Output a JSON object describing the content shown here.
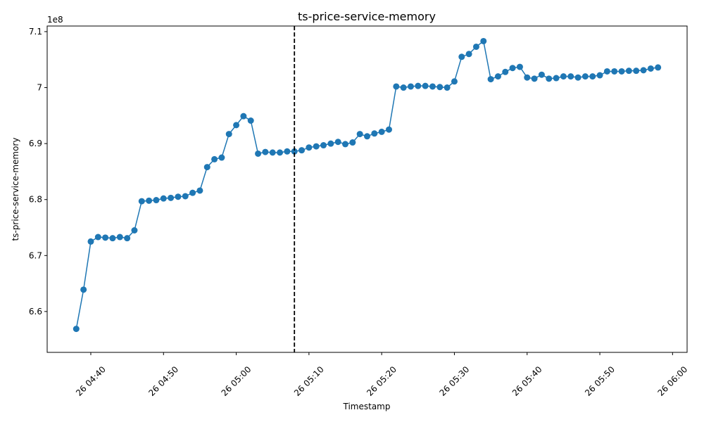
{
  "chart_data": {
    "type": "line",
    "title": "ts-price-service-memory",
    "xlabel": "Timestamp",
    "ylabel": "ts-price-service-memory",
    "y_offset_label": "1e8",
    "x": [
      "26 04:38",
      "26 04:39",
      "26 04:40",
      "26 04:41",
      "26 04:42",
      "26 04:43",
      "26 04:44",
      "26 04:45",
      "26 04:46",
      "26 04:47",
      "26 04:48",
      "26 04:49",
      "26 04:50",
      "26 04:51",
      "26 04:52",
      "26 04:53",
      "26 04:54",
      "26 04:55",
      "26 04:56",
      "26 04:57",
      "26 04:58",
      "26 04:59",
      "26 05:00",
      "26 05:01",
      "26 05:02",
      "26 05:03",
      "26 05:04",
      "26 05:05",
      "26 05:06",
      "26 05:07",
      "26 05:08",
      "26 05:09",
      "26 05:10",
      "26 05:11",
      "26 05:12",
      "26 05:13",
      "26 05:14",
      "26 05:15",
      "26 05:16",
      "26 05:17",
      "26 05:18",
      "26 05:19",
      "26 05:20",
      "26 05:21",
      "26 05:22",
      "26 05:23",
      "26 05:24",
      "26 05:25",
      "26 05:26",
      "26 05:27",
      "26 05:28",
      "26 05:29",
      "26 05:30",
      "26 05:31",
      "26 05:32",
      "26 05:33",
      "26 05:34",
      "26 05:35",
      "26 05:36",
      "26 05:37",
      "26 05:38",
      "26 05:39",
      "26 05:40",
      "26 05:41",
      "26 05:42",
      "26 05:43",
      "26 05:44",
      "26 05:45",
      "26 05:46",
      "26 05:47",
      "26 05:48",
      "26 05:49",
      "26 05:50",
      "26 05:51",
      "26 05:52",
      "26 05:53",
      "26 05:54",
      "26 05:55",
      "26 05:56",
      "26 05:57",
      "26 05:58"
    ],
    "values": [
      6.569,
      6.639,
      6.725,
      6.733,
      6.732,
      6.731,
      6.733,
      6.731,
      6.745,
      6.797,
      6.798,
      6.799,
      6.802,
      6.803,
      6.805,
      6.806,
      6.812,
      6.816,
      6.858,
      6.872,
      6.875,
      6.917,
      6.933,
      6.949,
      6.941,
      6.882,
      6.885,
      6.884,
      6.884,
      6.886,
      6.886,
      6.888,
      6.893,
      6.895,
      6.897,
      6.9,
      6.903,
      6.899,
      6.902,
      6.917,
      6.913,
      6.918,
      6.921,
      6.925,
      7.002,
      7.0,
      7.002,
      7.003,
      7.003,
      7.002,
      7.001,
      7.0,
      7.011,
      7.055,
      7.06,
      7.073,
      7.083,
      7.015,
      7.02,
      7.028,
      7.035,
      7.037,
      7.018,
      7.016,
      7.023,
      7.016,
      7.017,
      7.02,
      7.02,
      7.018,
      7.02,
      7.02,
      7.022,
      7.029,
      7.029,
      7.029,
      7.03,
      7.03,
      7.031,
      7.034,
      7.036
    ],
    "color": "#1f77b4",
    "vline": "26 05:08",
    "vline_color": "#000000",
    "xlim": [
      "26 04:34",
      "26 06:02"
    ],
    "xticks": [
      "26 04:40",
      "26 04:50",
      "26 05:00",
      "26 05:10",
      "26 05:20",
      "26 05:30",
      "26 05:40",
      "26 05:50",
      "26 06:00"
    ],
    "ylim": [
      6.527,
      7.11
    ],
    "yticks": [
      6.6,
      6.7,
      6.8,
      6.9,
      7.0,
      7.1
    ],
    "grid": false
  }
}
